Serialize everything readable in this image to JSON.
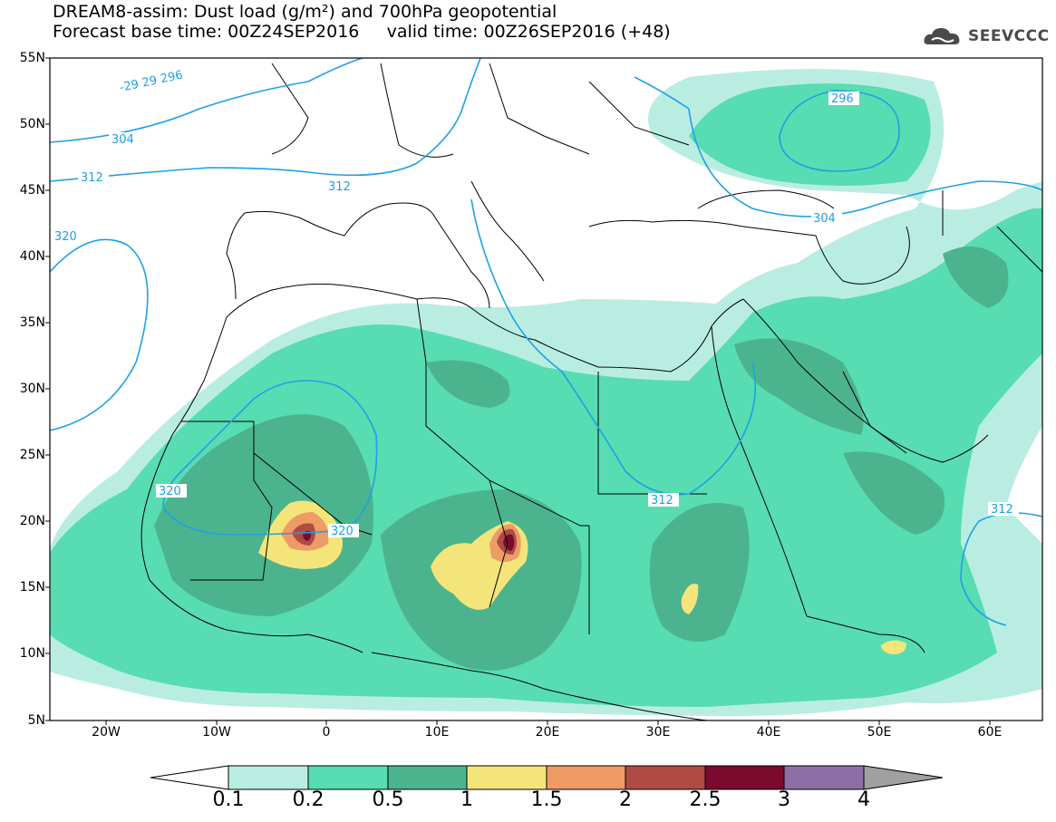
{
  "title": {
    "line1": "DREAM8-assim: Dust load (g/m²) and 700hPa geopotential",
    "line2": "Forecast base time: 00Z24SEP2016     valid time: 00Z26SEP2016 (+48)"
  },
  "logo": {
    "text": "SEEVCCC",
    "icon": "cloud-logo-icon"
  },
  "map": {
    "lat_labels": [
      "55N",
      "50N",
      "45N",
      "40N",
      "35N",
      "30N",
      "25N",
      "20N",
      "15N",
      "10N",
      "5N"
    ],
    "lon_labels": [
      "20W",
      "10W",
      "0",
      "10E",
      "20E",
      "30E",
      "40E",
      "50E",
      "60E"
    ],
    "contour_labels": [
      "-29 29 296",
      "304",
      "312",
      "312",
      "320",
      "296",
      "304",
      "320",
      "320",
      "312",
      "312"
    ],
    "colors": {
      "land_outline": "#000000",
      "contour": "#1fa0e6",
      "frame": "#000000"
    }
  },
  "colorbar": {
    "levels": [
      "0.1",
      "0.2",
      "0.5",
      "1",
      "1.5",
      "2",
      "2.5",
      "3",
      "4"
    ],
    "colors": [
      "#b9ede2",
      "#58dcb2",
      "#4bb48e",
      "#f4e57a",
      "#ee9b66",
      "#ae4b44",
      "#7a0a2e",
      "#8d6ea5"
    ],
    "under_color": "#ffffff",
    "over_color": "#a0a0a0"
  }
}
